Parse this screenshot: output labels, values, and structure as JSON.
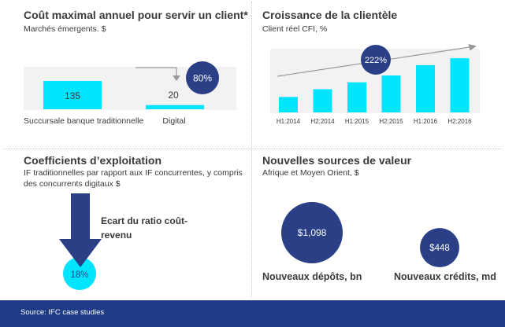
{
  "colors": {
    "cyan": "#00e5ff",
    "navy": "#2a3f86",
    "dark_blue": "#1f3b86",
    "grey_bg": "#f2f2f2",
    "text": "#3a3a3a"
  },
  "footer": {
    "source": "Source:  IFC case studies"
  },
  "chart_data": [
    {
      "type": "bar",
      "title": "Coût maximal annuel pour servir un client*",
      "subtitle": "Marchés émergents. $",
      "categories": [
        "Succursale banque traditionnelle",
        "Digital"
      ],
      "values": [
        135,
        20
      ],
      "value_labels": [
        "135",
        "20"
      ],
      "annotation": "80%",
      "ylim": [
        0,
        135
      ]
    },
    {
      "type": "bar",
      "title": "Croissance de la clientèle",
      "subtitle": "Client réel CFI, %",
      "categories": [
        "H1:2014",
        "H2:2014",
        "H1:2015",
        "H2:2015",
        "H1:2016",
        "H2:2016"
      ],
      "values": [
        18,
        27,
        35,
        43,
        55,
        63
      ],
      "annotation": "222%",
      "ylim": [
        0,
        75
      ]
    },
    {
      "type": "other",
      "title": "Coefficients d’exploitation",
      "subtitle": "IF traditionnelles par rapport aux IF concurrentes, y compris des concurrents digitaux   $",
      "arrow_label": "Ecart du ratio coût-revenu",
      "value_label": "18%"
    },
    {
      "type": "other",
      "title": "Nouvelles sources de valeur",
      "subtitle": "Afrique et Moyen Orient, $",
      "categories": [
        "Nouveaux dépôts, bn",
        "Nouveaux crédits, md"
      ],
      "values": [
        1098,
        448
      ],
      "value_labels": [
        "$1,098",
        "$448"
      ]
    }
  ]
}
